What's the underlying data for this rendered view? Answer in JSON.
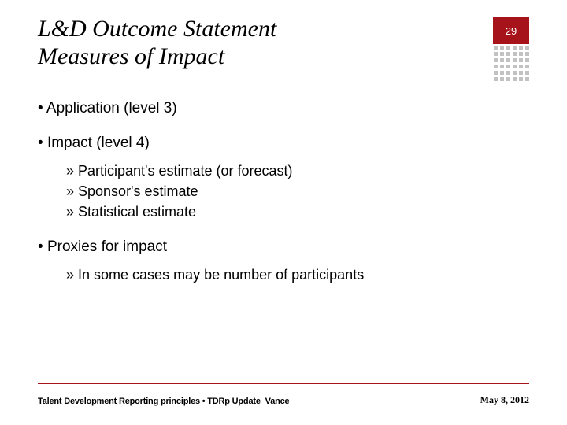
{
  "slide": {
    "title_line1": "L&D Outcome Statement",
    "title_line2": "Measures of Impact",
    "page_number": "29",
    "colors": {
      "accent": "#a7131a",
      "dot": "#c2c2c2",
      "background": "#ffffff",
      "text": "#000000"
    },
    "bullets": {
      "b1": "Application (level 3)",
      "b2": "Impact (level 4)",
      "b2_sub": {
        "s1": "Participant's estimate (or forecast)",
        "s2": "Sponsor's estimate",
        "s3": "Statistical estimate"
      },
      "b3": "Proxies for impact",
      "b3_sub": {
        "s1": "In some cases may be number of participants"
      }
    },
    "footer": {
      "left": "Talent Development Reporting principles • TDRp Update_Vance",
      "right": "May 8, 2012"
    }
  }
}
